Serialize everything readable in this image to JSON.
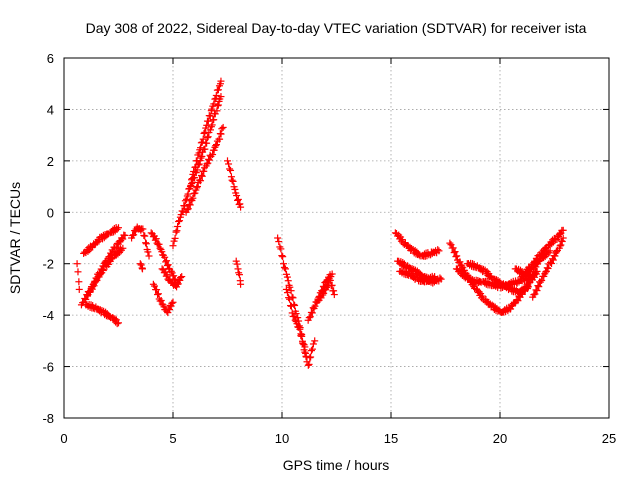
{
  "chart_data": {
    "type": "scatter",
    "title": "Day 308 of 2022, Sidereal Day-to-day VTEC variation (SDTVAR) for receiver ista",
    "xlabel": "GPS time / hours",
    "ylabel": "SDTVAR / TECUs",
    "xlim": [
      0,
      25
    ],
    "ylim": [
      -8,
      6
    ],
    "xticks": [
      0,
      5,
      10,
      15,
      20,
      25
    ],
    "yticks": [
      -8,
      -6,
      -4,
      -2,
      0,
      2,
      4,
      6
    ],
    "grid": true,
    "marker": "+",
    "color": "#ff0000",
    "series": [
      {
        "name": "t1",
        "x": [
          0.9,
          1.3,
          1.7,
          2.1,
          2.5
        ],
        "y": [
          -1.6,
          -1.3,
          -1.0,
          -0.8,
          -0.6
        ]
      },
      {
        "name": "t2",
        "x": [
          0.8,
          1.2,
          1.6,
          2.0,
          2.4,
          2.8
        ],
        "y": [
          -3.6,
          -3.0,
          -2.4,
          -1.8,
          -1.3,
          -0.9
        ]
      },
      {
        "name": "t3",
        "x": [
          1.1,
          1.5,
          1.9,
          2.3,
          2.7
        ],
        "y": [
          -3.2,
          -2.6,
          -2.1,
          -1.7,
          -1.4
        ]
      },
      {
        "name": "t4",
        "x": [
          1.0,
          1.4,
          1.8,
          2.2,
          2.5
        ],
        "y": [
          -3.6,
          -3.7,
          -3.9,
          -4.1,
          -4.3
        ]
      },
      {
        "name": "t5",
        "x": [
          0.6,
          0.7
        ],
        "y": [
          -2.0,
          -3.0
        ]
      },
      {
        "name": "t6",
        "x": [
          3.1,
          3.3,
          3.6,
          3.9
        ],
        "y": [
          -1.0,
          -0.6,
          -0.7,
          -1.7
        ]
      },
      {
        "name": "t7",
        "x": [
          3.5,
          3.6
        ],
        "y": [
          -2.0,
          -2.2
        ]
      },
      {
        "name": "t8",
        "x": [
          4.0,
          4.3,
          4.6,
          4.9,
          5.2
        ],
        "y": [
          -0.8,
          -1.2,
          -1.8,
          -2.3,
          -2.8
        ]
      },
      {
        "name": "t9",
        "x": [
          4.1,
          4.4,
          4.7,
          5.0
        ],
        "y": [
          -2.8,
          -3.4,
          -3.9,
          -3.5
        ]
      },
      {
        "name": "t10",
        "x": [
          4.5,
          4.8,
          5.1,
          5.4
        ],
        "y": [
          -2.2,
          -2.6,
          -2.9,
          -2.5
        ]
      },
      {
        "name": "t11",
        "x": [
          5.0,
          5.2,
          5.4,
          5.6,
          5.8,
          6.0,
          6.2,
          6.4,
          6.6,
          6.8,
          7.0,
          7.2
        ],
        "y": [
          -1.3,
          -0.5,
          0.0,
          0.5,
          1.1,
          1.7,
          2.3,
          2.9,
          3.5,
          4.0,
          4.6,
          5.1
        ]
      },
      {
        "name": "t12",
        "x": [
          5.6,
          5.9,
          6.2,
          6.5,
          6.8,
          7.1,
          7.3
        ],
        "y": [
          0.0,
          0.6,
          1.2,
          1.8,
          2.3,
          2.8,
          3.3
        ]
      },
      {
        "name": "t13",
        "x": [
          5.8,
          6.1,
          6.4,
          6.7,
          7.0,
          7.2
        ],
        "y": [
          1.0,
          1.7,
          2.4,
          3.2,
          4.0,
          4.5
        ]
      },
      {
        "name": "t14",
        "x": [
          7.5,
          7.7,
          7.9,
          8.1
        ],
        "y": [
          2.0,
          1.3,
          0.6,
          0.2
        ]
      },
      {
        "name": "t15",
        "x": [
          7.9,
          8.0,
          8.1
        ],
        "y": [
          -1.9,
          -2.3,
          -2.8
        ]
      },
      {
        "name": "t16",
        "x": [
          9.8,
          10.1,
          10.4,
          10.7,
          11.0,
          11.2,
          11.5
        ],
        "y": [
          -1.0,
          -2.1,
          -3.1,
          -4.1,
          -5.1,
          -6.0,
          -5.0
        ]
      },
      {
        "name": "t17",
        "x": [
          10.2,
          10.5,
          10.8,
          11.1
        ],
        "y": [
          -3.0,
          -4.0,
          -4.6,
          -5.6
        ]
      },
      {
        "name": "t18",
        "x": [
          11.2,
          11.5,
          11.8,
          12.0,
          12.3
        ],
        "y": [
          -4.2,
          -3.6,
          -3.1,
          -2.7,
          -2.4
        ]
      },
      {
        "name": "t19",
        "x": [
          11.6,
          11.9,
          12.2,
          12.4
        ],
        "y": [
          -3.5,
          -3.1,
          -2.7,
          -3.2
        ]
      },
      {
        "name": "t20",
        "x": [
          15.2,
          15.6,
          16.0,
          16.4,
          16.8,
          17.2
        ],
        "y": [
          -0.8,
          -1.2,
          -1.5,
          -1.7,
          -1.6,
          -1.5
        ]
      },
      {
        "name": "t21",
        "x": [
          15.3,
          15.7,
          16.1,
          16.5,
          16.9,
          17.3
        ],
        "y": [
          -1.9,
          -2.1,
          -2.3,
          -2.5,
          -2.7,
          -2.6
        ]
      },
      {
        "name": "t22",
        "x": [
          15.4,
          15.8,
          16.2,
          16.6,
          17.0
        ],
        "y": [
          -2.3,
          -2.4,
          -2.6,
          -2.7,
          -2.5
        ]
      },
      {
        "name": "t23",
        "x": [
          17.7,
          18.1,
          18.5,
          18.9,
          19.3,
          19.7,
          20.1,
          20.5,
          20.9,
          21.3,
          21.7
        ],
        "y": [
          -1.2,
          -1.9,
          -2.5,
          -3.0,
          -3.4,
          -3.7,
          -3.9,
          -3.7,
          -3.3,
          -2.8,
          -2.3
        ]
      },
      {
        "name": "t24",
        "x": [
          18.0,
          18.4,
          18.8,
          19.2,
          19.6,
          20.0,
          20.4,
          20.8,
          21.2,
          21.6
        ],
        "y": [
          -2.2,
          -2.5,
          -2.7,
          -2.7,
          -2.8,
          -2.9,
          -2.8,
          -2.7,
          -2.6,
          -2.4
        ]
      },
      {
        "name": "t25",
        "x": [
          18.5,
          18.9,
          19.3,
          19.7,
          20.1,
          20.5,
          20.9,
          21.3
        ],
        "y": [
          -2.0,
          -2.1,
          -2.3,
          -2.6,
          -2.8,
          -3.0,
          -3.1,
          -2.9
        ]
      },
      {
        "name": "t26",
        "x": [
          21.0,
          21.4,
          21.8,
          22.2,
          22.6,
          22.9
        ],
        "y": [
          -2.5,
          -2.1,
          -1.7,
          -1.3,
          -1.0,
          -0.7
        ]
      },
      {
        "name": "t27",
        "x": [
          21.5,
          21.9,
          22.3,
          22.7,
          22.9
        ],
        "y": [
          -3.3,
          -2.6,
          -2.0,
          -1.4,
          -1.0
        ]
      },
      {
        "name": "t28",
        "x": [
          20.7,
          21.1,
          21.5,
          21.9,
          22.3
        ],
        "y": [
          -2.2,
          -2.4,
          -2.2,
          -1.8,
          -1.5
        ]
      }
    ]
  }
}
